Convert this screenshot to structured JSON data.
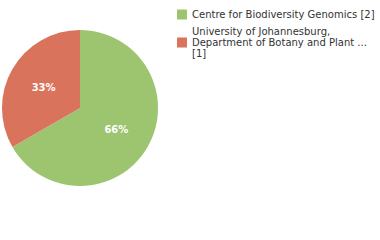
{
  "chart_data": {
    "type": "pie",
    "categories": [
      "Centre for Biodiversity Genomics [2]",
      "University of Johannesburg, Department of Botany and Plant ... [1]"
    ],
    "values": [
      66,
      33
    ],
    "value_labels": [
      "66%",
      "33%"
    ],
    "colors": [
      "#9dc46f",
      "#d9735b"
    ],
    "data_labels": true,
    "legend": "top-right"
  }
}
